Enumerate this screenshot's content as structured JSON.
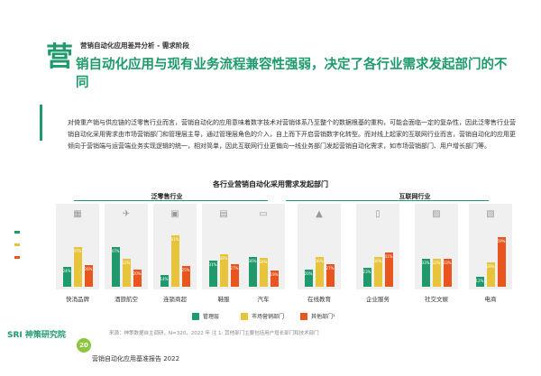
{
  "header": {
    "section": "营销自动化应用差异分析 - 需求阶段",
    "big_char": "营",
    "headline": "销自动化应用与现有业务流程兼容性强弱，决定了各行业需求发起部门的不同"
  },
  "body_text": "对倚重产销与供应链的泛零售行业而言，营销自动化的应用意味着数字技术对营销体系乃至整个的数据根基的重构，可能会面临一定的复杂性，因此泛零售行业营销自动化采用需求由市场营销部门和管理层主导，通过管理层角色的介入，自上而下开启营销数字化转型。而对线上起家的互联网行业而言，营销自动化的应用更倾向于营销端与运营端业务实现逻辑的统一，相对简单，因此互联网行业更偏向一线业务部门发起营销自动化需求，如市场营销部门、用户增长部门等。",
  "chart_data": {
    "type": "bar",
    "title": "各行业营销自动化采用需求发起部门",
    "groups": [
      {
        "name": "泛零售行业",
        "categories": [
          "快消品牌",
          "酒旅航空",
          "连锁商超",
          "鞋服",
          "汽车"
        ]
      },
      {
        "name": "互联网行业",
        "categories": [
          "在线教育",
          "企业服务",
          "社交文娱",
          "电商"
        ]
      }
    ],
    "categories": [
      "快消品牌",
      "酒旅航空",
      "连锁商超",
      "鞋服",
      "汽车",
      "在线教育",
      "企业服务",
      "社交文娱",
      "电商"
    ],
    "series": [
      {
        "name": "管理层",
        "color": "#1f9a6c",
        "values": [
          24,
          47,
          14,
          31,
          36,
          20,
          23,
          33,
          12
        ]
      },
      {
        "name": "市场营销部门",
        "color": "#e8c43a",
        "values": [
          47,
          33,
          61,
          39,
          34,
          36,
          36,
          33,
          29
        ]
      },
      {
        "name": "其他部门¹",
        "color": "#e8551e",
        "values": [
          26,
          20,
          25,
          27,
          19,
          27,
          41,
          33,
          59
        ]
      }
    ],
    "labels": [
      [
        "24%",
        "47%",
        "26%"
      ],
      [
        "47%",
        "33%",
        "20%"
      ],
      [
        "14%",
        "61%",
        "25%"
      ],
      [
        "31%",
        "39%",
        "27%"
      ],
      [
        "36%",
        "34%",
        "19%"
      ],
      [
        "20%",
        "36%",
        "27%"
      ],
      [
        "23%",
        "36%",
        "41%"
      ],
      [
        "33%",
        "33%",
        "33%"
      ],
      [
        "12%",
        "29%",
        "59%"
      ]
    ],
    "ylim": [
      0,
      70
    ]
  },
  "legend": {
    "a": "管理层",
    "b": "市场营销部门",
    "c": "其他部门¹"
  },
  "footer": {
    "source": "来源：神策数据自主调研，N=320，2022 年   注 1: 其他部门主要包括用户增长部门和技术部门",
    "title": "营销自动化应用基准报告 2022",
    "logo": "SRI 神策研究院",
    "page": "20"
  }
}
